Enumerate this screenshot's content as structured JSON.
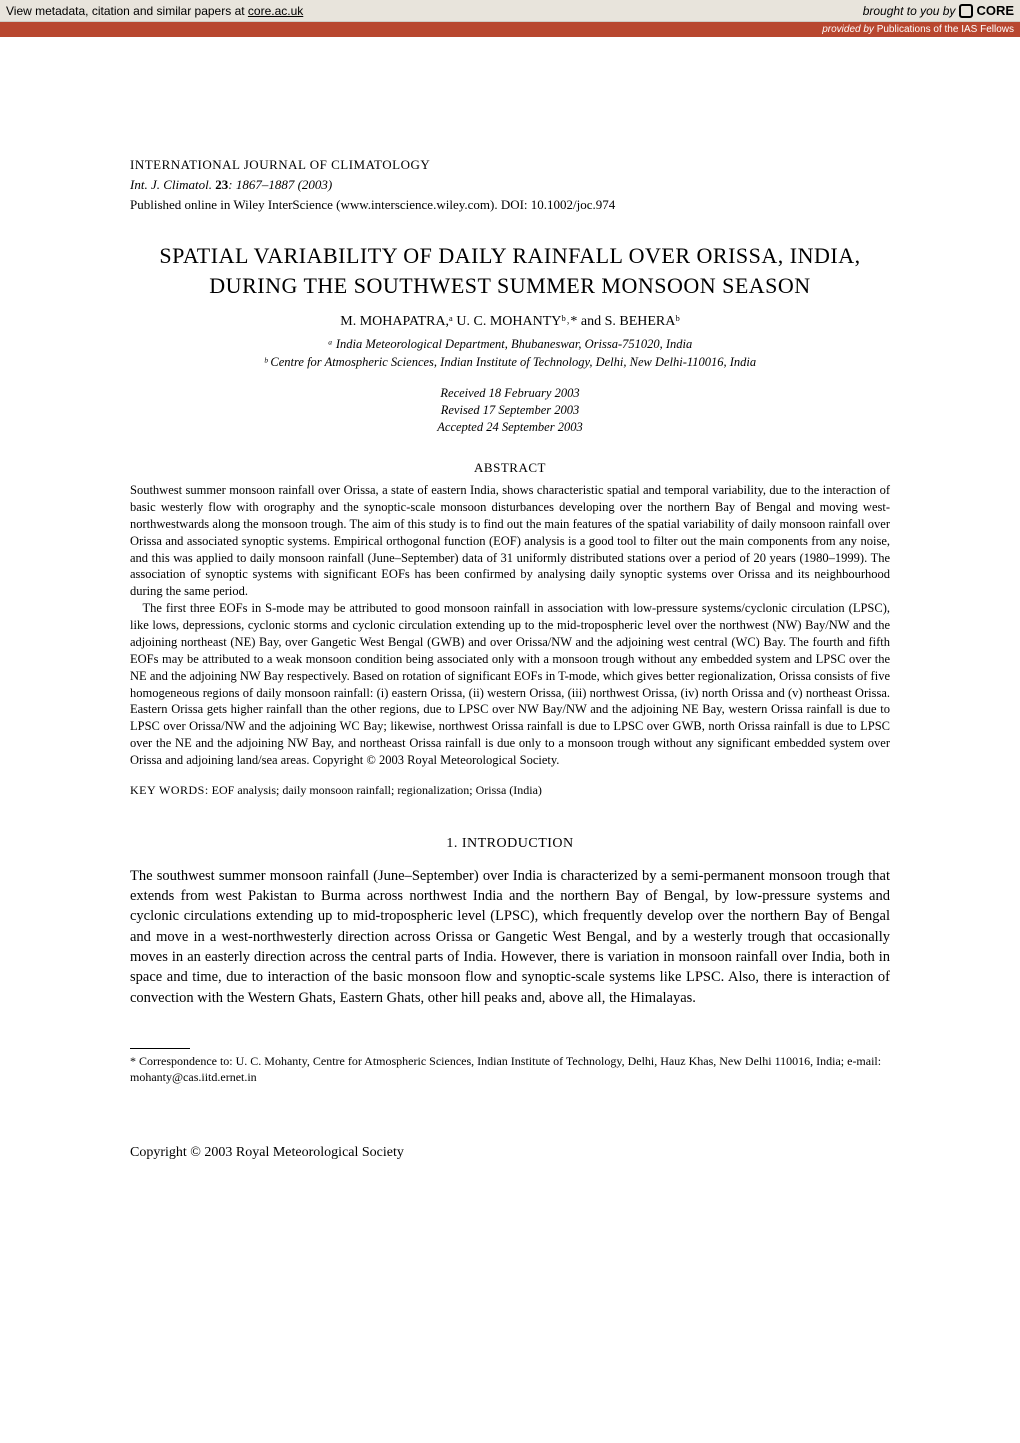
{
  "banner": {
    "left_prefix": "View metadata, citation and similar papers at ",
    "link_text": "core.ac.uk",
    "right_text": "brought to you by",
    "logo_text": "CORE"
  },
  "provided_bar": {
    "label": "provided by",
    "source": "Publications of the IAS Fellows"
  },
  "journal": {
    "name": "INTERNATIONAL JOURNAL OF CLIMATOLOGY",
    "abbrev": "Int. J. Climatol.",
    "volume": "23",
    "pages": "1867–1887 (2003)",
    "pub_line": "Published online in Wiley InterScience (www.interscience.wiley.com). DOI: 10.1002/joc.974"
  },
  "title": {
    "line1": "SPATIAL VARIABILITY OF DAILY RAINFALL OVER ORISSA, INDIA,",
    "line2": "DURING THE SOUTHWEST SUMMER MONSOON SEASON"
  },
  "authors": "M. MOHAPATRA,ᵃ U. C. MOHANTYᵇ˒* and S. BEHERAᵇ",
  "affiliations": {
    "a": "ᵃ India Meteorological Department, Bhubaneswar, Orissa-751020, India",
    "b": "ᵇ Centre for Atmospheric Sciences, Indian Institute of Technology, Delhi, New Delhi-110016, India"
  },
  "dates": {
    "received": "Received 18 February 2003",
    "revised": "Revised 17 September 2003",
    "accepted": "Accepted 24 September 2003"
  },
  "abstract": {
    "head": "ABSTRACT",
    "p1": "Southwest summer monsoon rainfall over Orissa, a state of eastern India, shows characteristic spatial and temporal variability, due to the interaction of basic westerly flow with orography and the synoptic-scale monsoon disturbances developing over the northern Bay of Bengal and moving west-northwestwards along the monsoon trough. The aim of this study is to find out the main features of the spatial variability of daily monsoon rainfall over Orissa and associated synoptic systems. Empirical orthogonal function (EOF) analysis is a good tool to filter out the main components from any noise, and this was applied to daily monsoon rainfall (June–September) data of 31 uniformly distributed stations over a period of 20 years (1980–1999). The association of synoptic systems with significant EOFs has been confirmed by analysing daily synoptic systems over Orissa and its neighbourhood during the same period.",
    "p2": "The first three EOFs in S-mode may be attributed to good monsoon rainfall in association with low-pressure systems/cyclonic circulation (LPSC), like lows, depressions, cyclonic storms and cyclonic circulation extending up to the mid-tropospheric level over the northwest (NW) Bay/NW and the adjoining northeast (NE) Bay, over Gangetic West Bengal (GWB) and over Orissa/NW and the adjoining west central (WC) Bay. The fourth and fifth EOFs may be attributed to a weak monsoon condition being associated only with a monsoon trough without any embedded system and LPSC over the NE and the adjoining NW Bay respectively. Based on rotation of significant EOFs in T-mode, which gives better regionalization, Orissa consists of five homogeneous regions of daily monsoon rainfall: (i) eastern Orissa, (ii) western Orissa, (iii) northwest Orissa, (iv) north Orissa and (v) northeast Orissa. Eastern Orissa gets higher rainfall than the other regions, due to LPSC over NW Bay/NW and the adjoining NE Bay, western Orissa rainfall is due to LPSC over Orissa/NW and the adjoining WC Bay; likewise, northwest Orissa rainfall is due to LPSC over GWB, north Orissa rainfall is due to LPSC over the NE and the adjoining NW Bay, and northeast Orissa rainfall is due only to a monsoon trough without any significant embedded system over Orissa and adjoining land/sea areas. Copyright © 2003 Royal Meteorological Society."
  },
  "keywords": {
    "label": "KEY WORDS:",
    "text": "EOF analysis; daily monsoon rainfall; regionalization; Orissa (India)"
  },
  "section1": {
    "head": "1.  INTRODUCTION",
    "body": "The southwest summer monsoon rainfall (June–September) over India is characterized by a semi-permanent monsoon trough that extends from west Pakistan to Burma across northwest India and the northern Bay of Bengal, by low-pressure systems and cyclonic circulations extending up to mid-tropospheric level (LPSC), which frequently develop over the northern Bay of Bengal and move in a west-northwesterly direction across Orissa or Gangetic West Bengal, and by a westerly trough that occasionally moves in an easterly direction across the central parts of India. However, there is variation in monsoon rainfall over India, both in space and time, due to interaction of the basic monsoon flow and synoptic-scale systems like LPSC. Also, there is interaction of convection with the Western Ghats, Eastern Ghats, other hill peaks and, above all, the Himalayas."
  },
  "footnote": "* Correspondence to: U. C. Mohanty, Centre for Atmospheric Sciences, Indian Institute of Technology, Delhi, Hauz Khas, New Delhi 110016, India; e-mail: mohanty@cas.iitd.ernet.in",
  "copyright": "Copyright © 2003 Royal Meteorological Society",
  "colors": {
    "banner_bg": "#e8e4dc",
    "provided_bg": "#b8472f",
    "provided_fg": "#ffffff",
    "page_bg": "#ffffff",
    "text": "#000000"
  },
  "typography": {
    "title_fontsize": 22,
    "body_fontsize": 14.5,
    "abstract_fontsize": 12.5,
    "font_family": "Times New Roman"
  }
}
